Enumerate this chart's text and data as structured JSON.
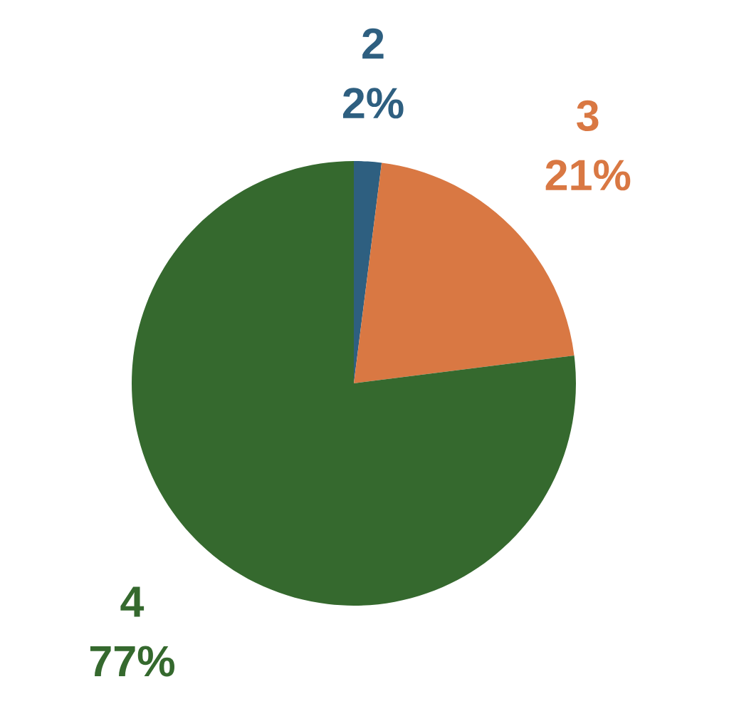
{
  "chart_data": {
    "type": "pie",
    "categories": [
      "2",
      "3",
      "4"
    ],
    "values": [
      2,
      21,
      77
    ],
    "colors": [
      "#2e5f80",
      "#d97843",
      "#35692e"
    ],
    "value_labels": [
      "2%",
      "21%",
      "77%"
    ]
  }
}
